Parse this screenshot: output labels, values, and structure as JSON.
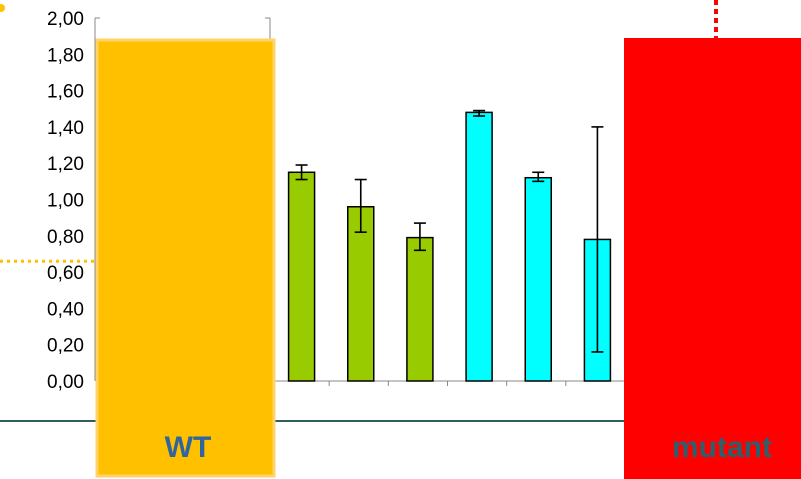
{
  "chart_data": {
    "type": "bar",
    "title": "",
    "xlabel": "",
    "ylabel": "",
    "ylim": [
      0,
      2
    ],
    "y_ticks": [
      "0,00",
      "0,20",
      "0,40",
      "0,60",
      "0,80",
      "1,00",
      "1,20",
      "1,40",
      "1,60",
      "1,80",
      "2,00"
    ],
    "y_tick_values": [
      0,
      0.2,
      0.4,
      0.6,
      0.8,
      1.0,
      1.2,
      1.4,
      1.6,
      1.8,
      2.0
    ],
    "grid": false,
    "bars": [
      {
        "group": "green",
        "value": 1.15,
        "error_low": 1.11,
        "error_high": 1.19
      },
      {
        "group": "green",
        "value": 0.96,
        "error_low": 0.82,
        "error_high": 1.11
      },
      {
        "group": "green",
        "value": 0.79,
        "error_low": 0.72,
        "error_high": 0.87
      },
      {
        "group": "cyan",
        "value": 1.48,
        "error_low": 1.46,
        "error_high": 1.49
      },
      {
        "group": "cyan",
        "value": 1.12,
        "error_low": 1.1,
        "error_high": 1.15
      },
      {
        "group": "cyan",
        "value": 0.78,
        "error_low": 0.16,
        "error_high": 1.4
      }
    ],
    "group_colors": {
      "green": "#99cc00",
      "cyan": "#00ffff"
    },
    "reference_line_value": 0.66,
    "reference_line_color": "#ffc000"
  },
  "overlays": {
    "wt_label": "WT",
    "wt_color": "#ffc000",
    "wt_label_color": "#31659c",
    "mutant_label": "mutant",
    "mutant_color": "#ff0000",
    "mutant_label_color": "#2f5f6a",
    "divider_color": "#2f5f5c"
  }
}
